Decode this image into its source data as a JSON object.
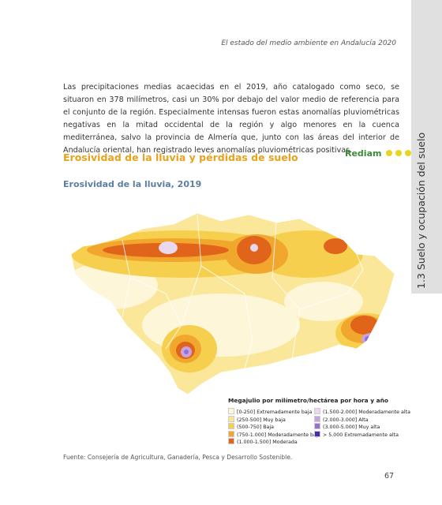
{
  "header": {
    "running_title": "El estado del medio ambiente en Andalucía 2020"
  },
  "side_tab": "1.3 Suelo y ocupación del suelo",
  "body": {
    "paragraph": "Las precipitaciones medias acaecidas en el 2019, año catalogado como seco, se situaron en 378 milímetros, casi un 30% por debajo del valor medio de referencia para el conjunto de la región. Especialmente intensas fueron estas anomalías pluviométricas negativas en la mitad occidental de la región y algo menores en la cuenca mediterránea, salvo la provincia de Almería que, junto con las áreas del interior de Andalucía oriental, han registrado leves anomalías pluviométricas positivas."
  },
  "section_title": "Erosividad de la lluvia y pérdidas de suelo",
  "logo": "Rediam",
  "map": {
    "title": "Erosividad de la lluvia, 2019",
    "legend": {
      "title": "Megajulio por milímetro/hectárea por hora y año",
      "items": [
        {
          "label": "[0-250] Extremadamente baja",
          "color": "#fdf6d8"
        },
        {
          "label": "(250-500] Muy baja",
          "color": "#fbe79a"
        },
        {
          "label": "(500-750] Baja",
          "color": "#f7cf4f"
        },
        {
          "label": "(750-1.000] Moderadamente baja",
          "color": "#f1a72e"
        },
        {
          "label": "(1.000-1.500] Moderada",
          "color": "#e0651a"
        },
        {
          "label": "(1.500-2.000] Moderadamente alta",
          "color": "#ead8ee"
        },
        {
          "label": "(2.000-3.000] Alta",
          "color": "#c7a3e2"
        },
        {
          "label": "(3.000-5.000] Muy alta",
          "color": "#9770d6"
        },
        {
          "label": "> 5.000 Extremadamente alta",
          "color": "#4a2aae"
        }
      ]
    }
  },
  "source": "Fuente: Consejería de Agricultura, Ganadería, Pesca y Desarrollo Sostenible.",
  "page_number": "67"
}
